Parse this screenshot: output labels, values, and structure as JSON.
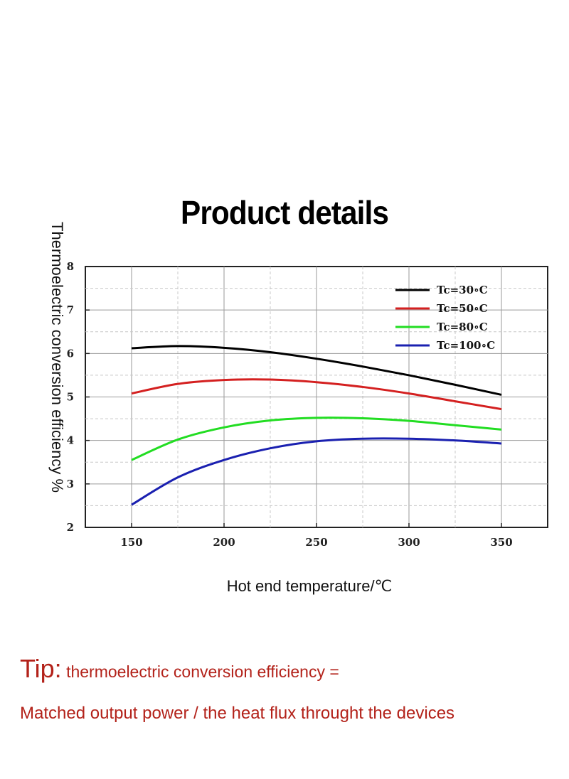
{
  "page": {
    "title": "Product details",
    "tip_prefix": "Tip:",
    "tip_line1": " thermoelectric conversion efficiency =",
    "tip_line2": "Matched output power / the heat flux throught the devices"
  },
  "chart_data": {
    "type": "line",
    "xlabel": "Hot end temperature/℃",
    "ylabel": "Thermoelectric conversion efficiency %",
    "xlim": [
      125,
      375
    ],
    "ylim": [
      2,
      8
    ],
    "xticks": [
      150,
      200,
      250,
      300,
      350
    ],
    "yticks": [
      2,
      3,
      4,
      5,
      6,
      7,
      8
    ],
    "grid": true,
    "legend_position": "top-right",
    "x": [
      150,
      175,
      200,
      225,
      250,
      275,
      300,
      325,
      350
    ],
    "series": [
      {
        "name": "Tc=30∘C",
        "color": "#000000",
        "values": [
          6.12,
          6.17,
          6.13,
          6.03,
          5.88,
          5.7,
          5.5,
          5.28,
          5.05
        ]
      },
      {
        "name": "Tc=50∘C",
        "color": "#d42020",
        "values": [
          5.08,
          5.3,
          5.39,
          5.4,
          5.34,
          5.23,
          5.08,
          4.9,
          4.72
        ]
      },
      {
        "name": "Tc=80∘C",
        "color": "#22dd22",
        "values": [
          3.55,
          4.02,
          4.3,
          4.46,
          4.52,
          4.51,
          4.45,
          4.35,
          4.25
        ]
      },
      {
        "name": "Tc=100∘C",
        "color": "#1a20b0",
        "values": [
          2.52,
          3.15,
          3.55,
          3.82,
          3.98,
          4.04,
          4.04,
          4.0,
          3.93
        ]
      }
    ]
  }
}
